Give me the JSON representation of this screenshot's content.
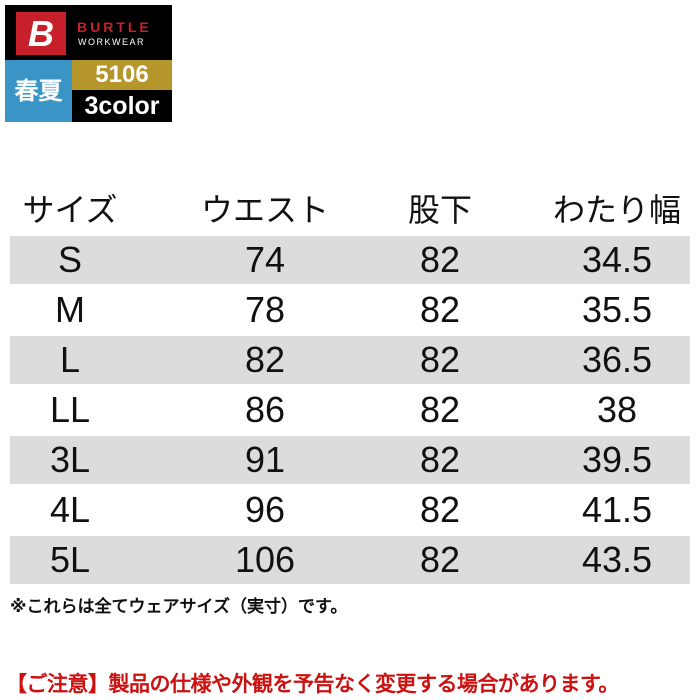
{
  "logo": {
    "brand": "BURTLE",
    "sub": "WORKWEAR",
    "mark": "B"
  },
  "badge": {
    "season": "春夏",
    "model": "5106",
    "colors": "3color"
  },
  "table": {
    "headers": [
      "サイズ",
      "ウエスト",
      "股下",
      "わたり幅"
    ],
    "rows": [
      [
        "S",
        "74",
        "82",
        "34.5"
      ],
      [
        "M",
        "78",
        "82",
        "35.5"
      ],
      [
        "L",
        "82",
        "82",
        "36.5"
      ],
      [
        "LL",
        "86",
        "82",
        "38"
      ],
      [
        "3L",
        "91",
        "82",
        "39.5"
      ],
      [
        "4L",
        "96",
        "82",
        "41.5"
      ],
      [
        "5L",
        "106",
        "82",
        "43.5"
      ]
    ]
  },
  "note": "※これらは全てウェアサイズ（実寸）です。",
  "warning": "【ご注意】製品の仕様や外観を予告なく変更する場合があります。",
  "colors": {
    "brand_red": "#c8202a",
    "season_blue": "#3a95c6",
    "gold": "#b5962b",
    "row_grey": "#dcdcdc",
    "warning_red": "#cc1111"
  }
}
